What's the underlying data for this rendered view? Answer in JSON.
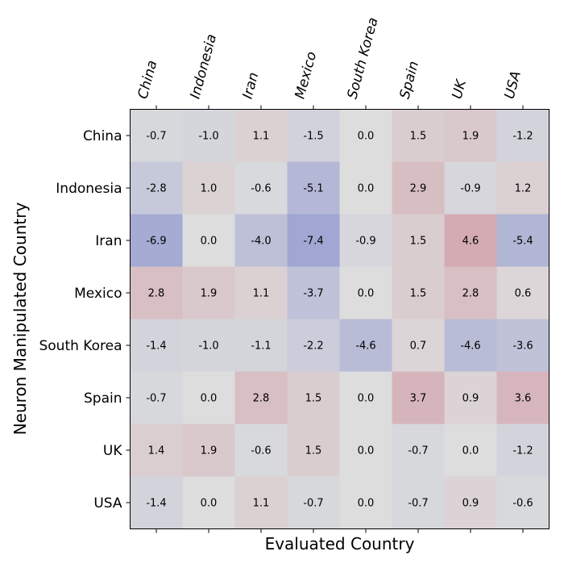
{
  "chart_data": {
    "type": "heatmap",
    "title": "",
    "xlabel": "Evaluated Country",
    "ylabel": "Neuron Manipulated Country",
    "x_categories": [
      "China",
      "Indonesia",
      "Iran",
      "Mexico",
      "South Korea",
      "Spain",
      "UK",
      "USA"
    ],
    "y_categories": [
      "China",
      "Indonesia",
      "Iran",
      "Mexico",
      "South Korea",
      "Spain",
      "UK",
      "USA"
    ],
    "values": [
      [
        -0.7,
        -1.0,
        1.1,
        -1.5,
        0.0,
        1.5,
        1.9,
        -1.2
      ],
      [
        -2.8,
        1.0,
        -0.6,
        -5.1,
        0.0,
        2.9,
        -0.9,
        1.2
      ],
      [
        -6.9,
        0.0,
        -4.0,
        -7.4,
        -0.9,
        1.5,
        4.6,
        -5.4
      ],
      [
        2.8,
        1.9,
        1.1,
        -3.7,
        0.0,
        1.5,
        2.8,
        0.6
      ],
      [
        -1.4,
        -1.0,
        -1.1,
        -2.2,
        -4.6,
        0.7,
        -4.6,
        -3.6
      ],
      [
        -0.7,
        0.0,
        2.8,
        1.5,
        0.0,
        3.7,
        0.9,
        3.6
      ],
      [
        1.4,
        1.9,
        -0.6,
        1.5,
        0.0,
        -0.7,
        0.0,
        -1.2
      ],
      [
        -1.4,
        0.0,
        1.1,
        -0.7,
        0.0,
        -0.7,
        0.9,
        -0.6
      ]
    ],
    "value_range": [
      -20,
      20
    ],
    "colormap": "coolwarm",
    "colormap_endpoints": {
      "low": "#3b4cc0",
      "mid": "#dddddd",
      "high": "#b40426"
    },
    "label_color": "#000000",
    "x_tick_labels_position": "top",
    "x_tick_rotation": 75,
    "legend": "none"
  }
}
